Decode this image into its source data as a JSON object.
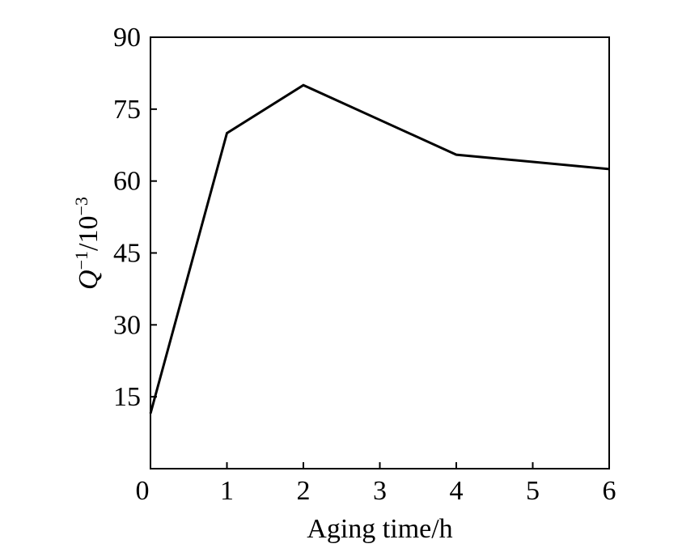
{
  "chart_data": {
    "type": "line",
    "xlabel": "Aging time/h",
    "ylabel": {
      "base": "Q",
      "sup1": "−1",
      "mid": "/10",
      "sup2": "−3"
    },
    "xlim": [
      0,
      6
    ],
    "ylim": [
      0,
      90
    ],
    "x_ticks": [
      "0",
      "1",
      "2",
      "3",
      "4",
      "5",
      "6"
    ],
    "y_ticks": [
      "15",
      "30",
      "45",
      "60",
      "75",
      "90"
    ],
    "grid": false,
    "series": [
      {
        "color": "#000000",
        "x": [
          0,
          1,
          2,
          4,
          6
        ],
        "y": [
          11.5,
          70,
          80,
          65.5,
          62.5
        ]
      }
    ]
  }
}
